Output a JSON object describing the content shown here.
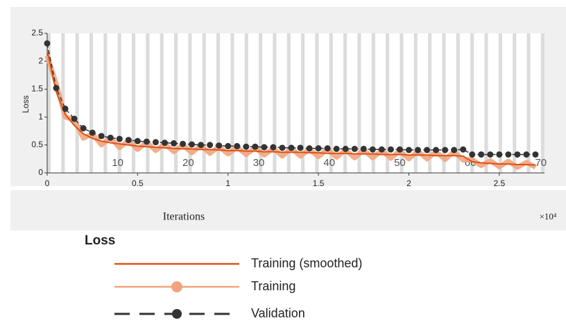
{
  "chart_data": {
    "type": "line",
    "y_label": "Loss",
    "x_label": "Iterations",
    "x_exponent": "×10⁴",
    "legend_title": "Loss",
    "xlim": [
      0,
      2.75
    ],
    "ylim": [
      0,
      2.5
    ],
    "xticks": [
      0,
      0.5,
      1,
      1.5,
      2,
      2.5
    ],
    "yticks": [
      0,
      0.5,
      1,
      1.5,
      2,
      2.5
    ],
    "epoch_ticks": [
      {
        "value": 0.39,
        "label": "10"
      },
      {
        "value": 0.78,
        "label": "20"
      },
      {
        "value": 1.17,
        "label": "30"
      },
      {
        "value": 1.56,
        "label": "40"
      },
      {
        "value": 1.95,
        "label": "50"
      },
      {
        "value": 2.34,
        "label": "60"
      },
      {
        "value": 2.73,
        "label": "70"
      }
    ],
    "x": [
      0,
      0.05,
      0.1,
      0.15,
      0.2,
      0.25,
      0.3,
      0.35,
      0.4,
      0.45,
      0.5,
      0.55,
      0.6,
      0.65,
      0.7,
      0.75,
      0.8,
      0.85,
      0.9,
      0.95,
      1,
      1.05,
      1.1,
      1.15,
      1.2,
      1.25,
      1.3,
      1.35,
      1.4,
      1.45,
      1.5,
      1.55,
      1.6,
      1.65,
      1.7,
      1.75,
      1.8,
      1.85,
      1.9,
      1.95,
      2,
      2.05,
      2.1,
      2.15,
      2.2,
      2.25,
      2.3,
      2.35,
      2.4,
      2.45,
      2.5,
      2.55,
      2.6,
      2.65,
      2.7
    ],
    "series": [
      {
        "name": "Training (smoothed)",
        "color": "#d95319",
        "style": "solid",
        "values": [
          2.2,
          1.45,
          1.05,
          0.85,
          0.7,
          0.62,
          0.57,
          0.54,
          0.52,
          0.5,
          0.48,
          0.47,
          0.46,
          0.45,
          0.44,
          0.43,
          0.43,
          0.42,
          0.42,
          0.41,
          0.4,
          0.4,
          0.39,
          0.39,
          0.38,
          0.38,
          0.37,
          0.37,
          0.37,
          0.36,
          0.36,
          0.35,
          0.35,
          0.35,
          0.34,
          0.34,
          0.34,
          0.33,
          0.33,
          0.33,
          0.32,
          0.32,
          0.32,
          0.31,
          0.31,
          0.31,
          0.3,
          0.2,
          0.18,
          0.17,
          0.16,
          0.16,
          0.15,
          0.15,
          0.14
        ]
      },
      {
        "name": "Training",
        "color": "#f2a47c",
        "style": "raw",
        "values": [
          2.1,
          1.6,
          1.0,
          0.95,
          0.62,
          0.7,
          0.5,
          0.63,
          0.45,
          0.58,
          0.42,
          0.55,
          0.4,
          0.52,
          0.38,
          0.5,
          0.36,
          0.49,
          0.35,
          0.47,
          0.34,
          0.46,
          0.33,
          0.45,
          0.32,
          0.44,
          0.3,
          0.44,
          0.3,
          0.42,
          0.29,
          0.43,
          0.28,
          0.41,
          0.27,
          0.41,
          0.27,
          0.4,
          0.26,
          0.4,
          0.25,
          0.39,
          0.25,
          0.38,
          0.24,
          0.38,
          0.23,
          0.24,
          0.13,
          0.22,
          0.11,
          0.21,
          0.1,
          0.19,
          0.1
        ]
      },
      {
        "name": "Validation",
        "color": "#333333",
        "style": "dashed-marker",
        "values": [
          2.32,
          1.52,
          1.15,
          0.97,
          0.8,
          0.72,
          0.66,
          0.63,
          0.61,
          0.59,
          0.57,
          0.56,
          0.55,
          0.54,
          0.53,
          0.52,
          0.51,
          0.5,
          0.5,
          0.49,
          0.48,
          0.48,
          0.47,
          0.47,
          0.46,
          0.46,
          0.45,
          0.45,
          0.45,
          0.44,
          0.44,
          0.44,
          0.43,
          0.43,
          0.43,
          0.43,
          0.42,
          0.42,
          0.42,
          0.42,
          0.41,
          0.41,
          0.41,
          0.41,
          0.41,
          0.41,
          0.42,
          0.33,
          0.33,
          0.33,
          0.33,
          0.33,
          0.33,
          0.33,
          0.33
        ]
      }
    ]
  }
}
